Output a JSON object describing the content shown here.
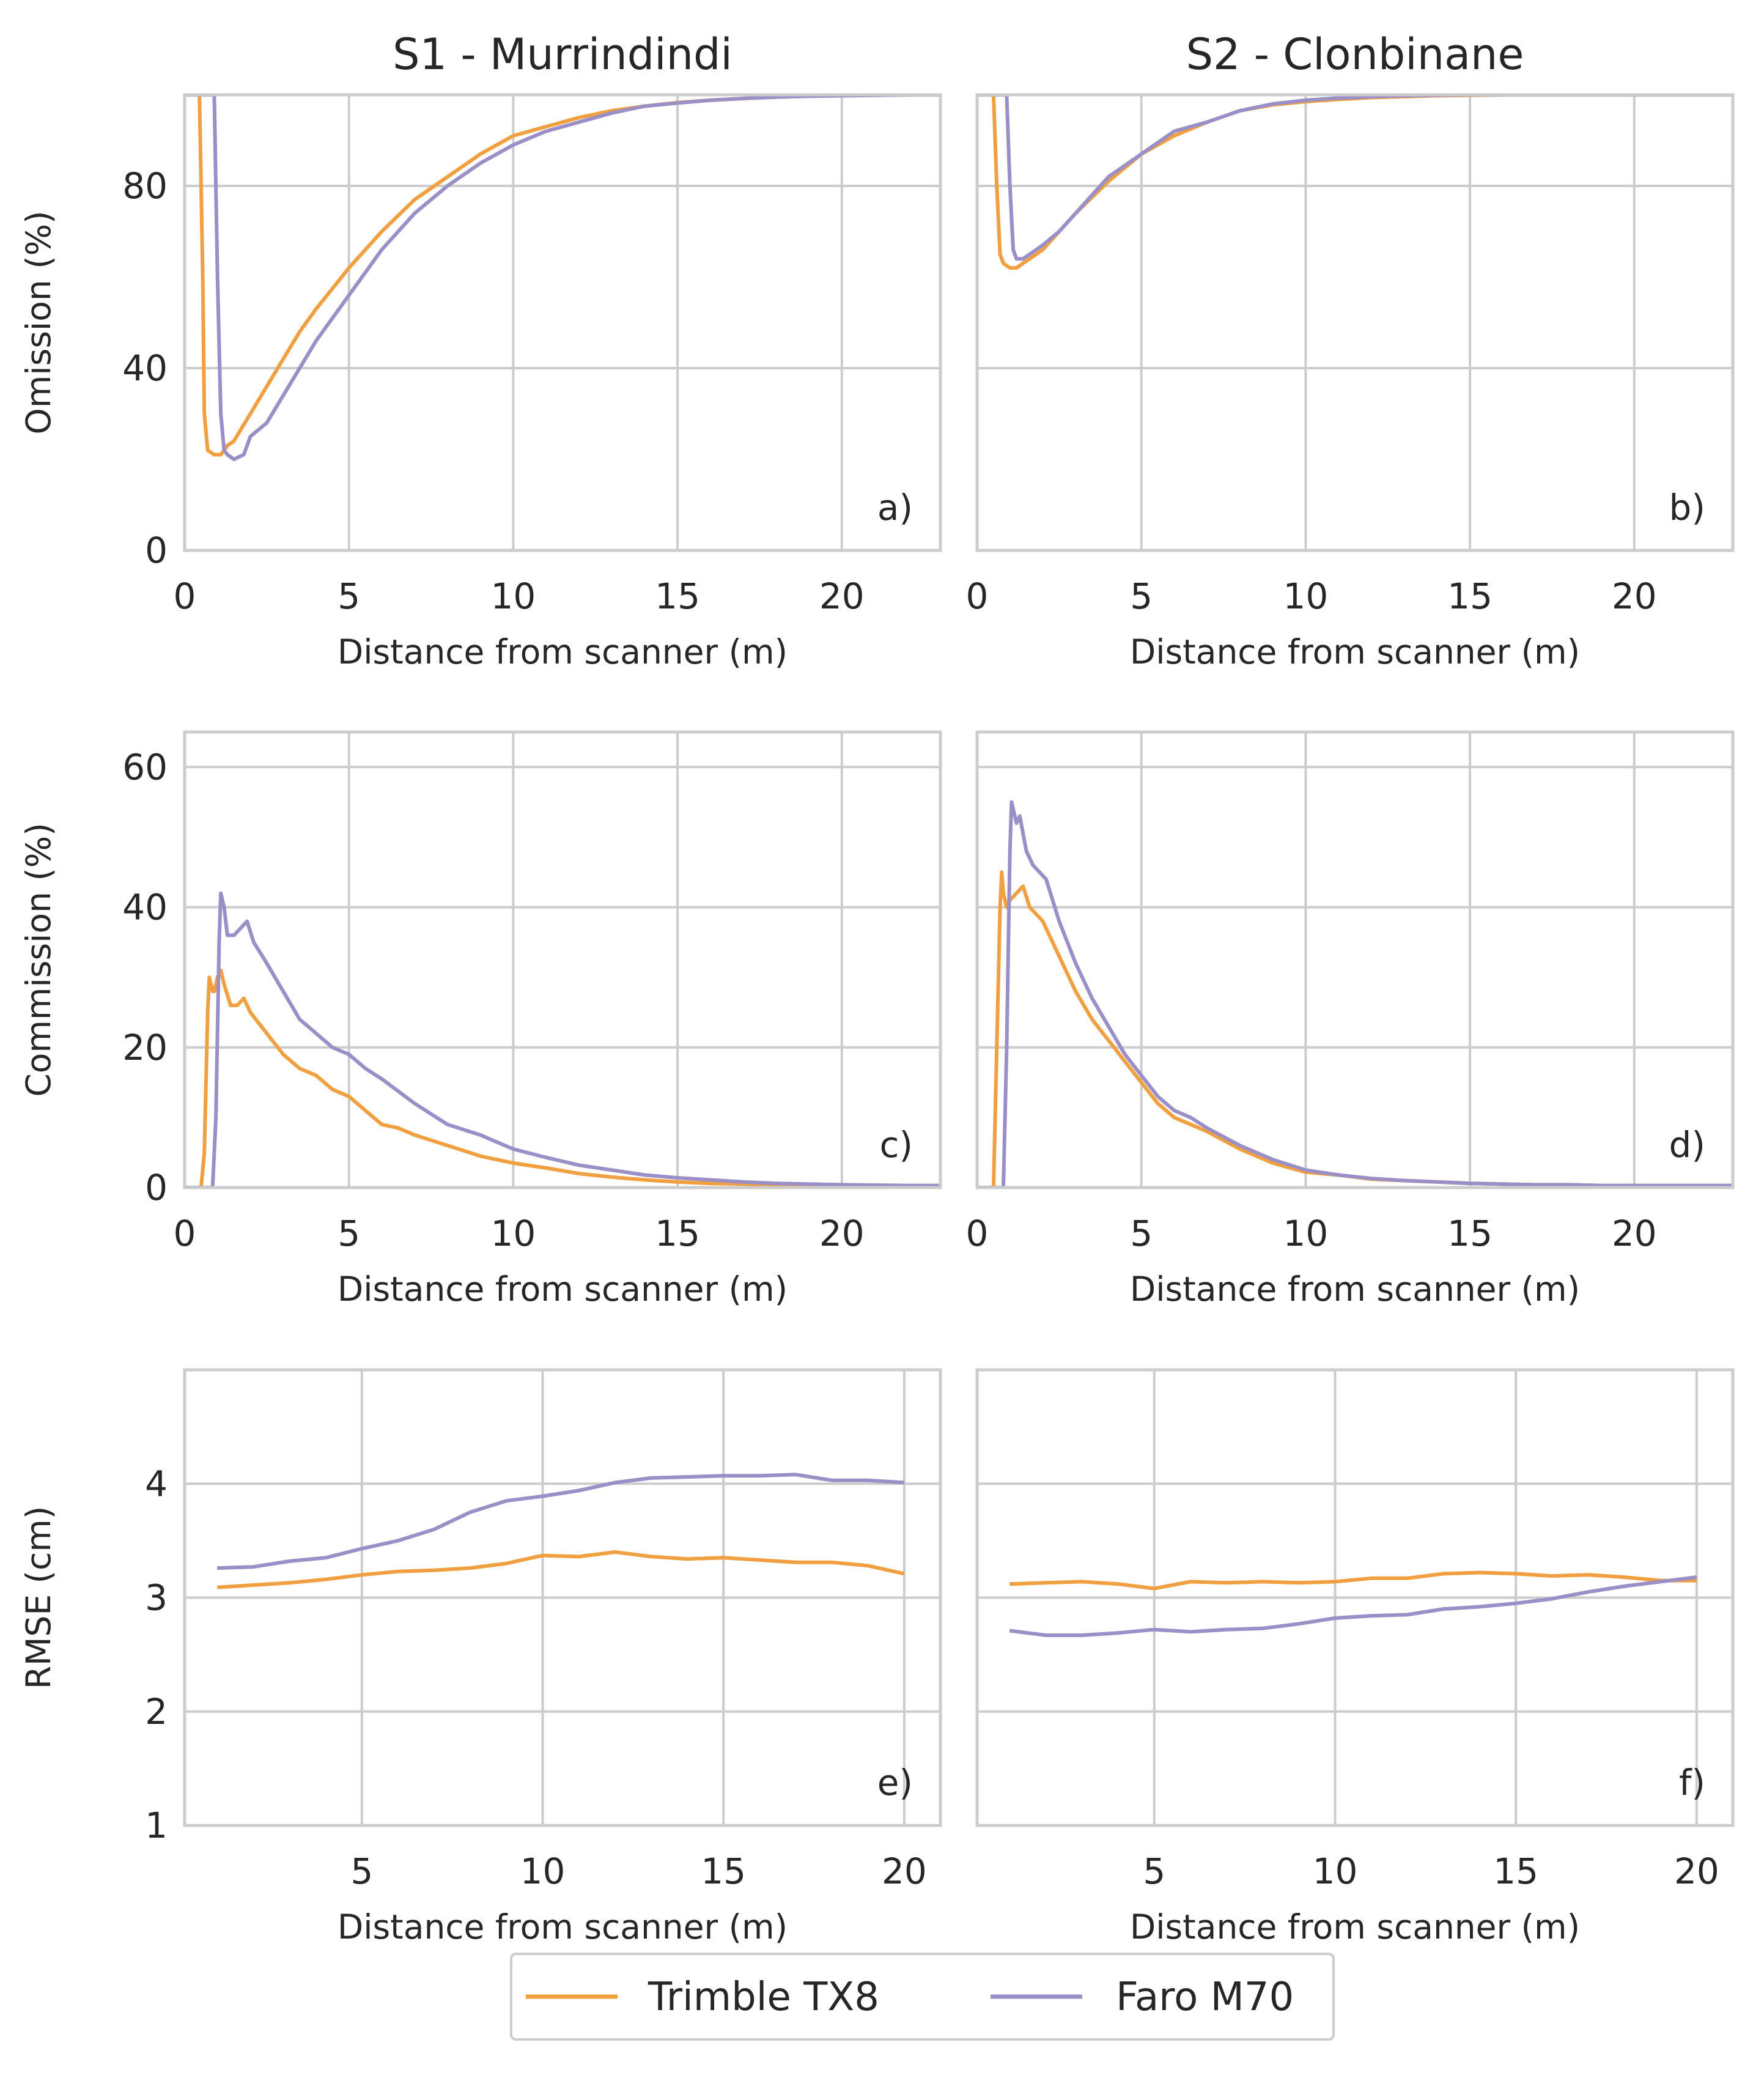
{
  "colors": {
    "trimble": "#f0a040",
    "faro": "#9b8fc8",
    "grid": "#cccccc",
    "frame": "#cccccc"
  },
  "legend": {
    "items": [
      {
        "label": "Trimble TX8",
        "color": "#f0a040"
      },
      {
        "label": "Faro M70",
        "color": "#9b8fc8"
      }
    ]
  },
  "chart_data": [
    {
      "id": "a",
      "type": "line",
      "panel_label": "a)",
      "title": "S1 - Murrindindi",
      "xlabel": "Distance from scanner (m)",
      "ylabel": "Omission (%)",
      "xlim": [
        0,
        23
      ],
      "ylim": [
        0,
        100
      ],
      "xticks": [
        0,
        5,
        10,
        15,
        20
      ],
      "yticks": [
        0,
        40,
        80
      ],
      "grid": true,
      "series": [
        {
          "name": "Trimble TX8",
          "x": [
            0,
            0.45,
            0.55,
            0.6,
            0.7,
            0.9,
            1.1,
            1.3,
            1.5,
            2,
            2.5,
            3,
            3.5,
            4,
            5,
            6,
            7,
            8,
            9,
            10,
            11,
            12,
            13,
            14,
            15,
            16,
            17,
            18,
            19,
            20,
            21,
            22,
            23
          ],
          "y": [
            100,
            100,
            60,
            30,
            22,
            21,
            21,
            23,
            24,
            30,
            36,
            42,
            48,
            53,
            62,
            70,
            77,
            82,
            87,
            91,
            93,
            95,
            96.5,
            97.5,
            98.3,
            98.8,
            99.2,
            99.5,
            99.7,
            99.8,
            99.9,
            100,
            100
          ]
        },
        {
          "name": "Faro M70",
          "x": [
            0,
            0.9,
            1.0,
            1.1,
            1.2,
            1.3,
            1.5,
            1.8,
            2,
            2.5,
            3,
            3.5,
            4,
            5,
            6,
            7,
            8,
            9,
            10,
            11,
            12,
            13,
            14,
            15,
            16,
            17,
            18,
            19,
            20,
            21,
            22,
            23
          ],
          "y": [
            100,
            100,
            60,
            30,
            22,
            21,
            20,
            21,
            25,
            28,
            34,
            40,
            46,
            56,
            66,
            74,
            80,
            85,
            89,
            92,
            94,
            96,
            97.5,
            98.2,
            98.8,
            99.2,
            99.5,
            99.7,
            99.8,
            99.9,
            100,
            100
          ]
        }
      ]
    },
    {
      "id": "b",
      "type": "line",
      "panel_label": "b)",
      "title": "S2 - Clonbinane",
      "xlabel": "Distance from scanner (m)",
      "ylabel": "",
      "xlim": [
        0,
        23
      ],
      "ylim": [
        0,
        100
      ],
      "xticks": [
        0,
        5,
        10,
        15,
        20
      ],
      "yticks": [
        0,
        40,
        80
      ],
      "grid": true,
      "series": [
        {
          "name": "Trimble TX8",
          "x": [
            0,
            0.5,
            0.6,
            0.7,
            0.8,
            1.0,
            1.2,
            1.4,
            1.6,
            2,
            2.5,
            3,
            4,
            5,
            6,
            7,
            8,
            9,
            10,
            11,
            12,
            13,
            14,
            15,
            16,
            17,
            18,
            19,
            20,
            21,
            22,
            23
          ],
          "y": [
            100,
            100,
            80,
            65,
            63,
            62,
            62,
            63,
            64,
            66,
            70,
            74,
            81,
            87,
            91,
            94,
            96.5,
            97.8,
            98.5,
            99,
            99.4,
            99.6,
            99.8,
            99.9,
            100,
            100,
            100,
            100,
            100,
            100,
            100,
            100
          ]
        },
        {
          "name": "Faro M70",
          "x": [
            0,
            0.9,
            1.0,
            1.1,
            1.2,
            1.4,
            1.6,
            2,
            2.5,
            3,
            4,
            5,
            6,
            7,
            8,
            9,
            10,
            11,
            12,
            13,
            14,
            15,
            16,
            17,
            18,
            19,
            20,
            21,
            22,
            23
          ],
          "y": [
            100,
            100,
            80,
            66,
            64,
            64,
            65,
            67,
            70,
            74,
            82,
            87,
            92,
            94,
            96.5,
            98,
            98.8,
            99.3,
            99.6,
            99.8,
            99.9,
            100,
            100,
            100,
            100,
            100,
            100,
            100,
            100,
            100
          ]
        }
      ]
    },
    {
      "id": "c",
      "type": "line",
      "panel_label": "c)",
      "title": "",
      "xlabel": "Distance from scanner (m)",
      "ylabel": "Commission (%)",
      "xlim": [
        0,
        23
      ],
      "ylim": [
        0,
        65
      ],
      "xticks": [
        0,
        5,
        10,
        15,
        20
      ],
      "yticks": [
        0,
        20,
        40,
        60
      ],
      "grid": true,
      "series": [
        {
          "name": "Trimble TX8",
          "x": [
            0,
            0.5,
            0.6,
            0.7,
            0.75,
            0.85,
            0.9,
            1.0,
            1.1,
            1.2,
            1.4,
            1.6,
            1.8,
            2,
            2.5,
            3,
            3.5,
            4,
            4.5,
            5,
            5.5,
            6,
            6.5,
            7,
            8,
            9,
            10,
            11,
            12,
            13,
            14,
            15,
            16,
            17,
            18,
            19,
            20,
            21,
            22,
            23
          ],
          "y": [
            0,
            0,
            5,
            25,
            30,
            28,
            28,
            30,
            31,
            29,
            26,
            26,
            27,
            25,
            22,
            19,
            17,
            16,
            14,
            13,
            11,
            9,
            8.5,
            7.5,
            6,
            4.5,
            3.5,
            2.8,
            2.0,
            1.5,
            1.1,
            0.8,
            0.6,
            0.5,
            0.4,
            0.35,
            0.3,
            0.3,
            0.3,
            0.3
          ]
        },
        {
          "name": "Faro M70",
          "x": [
            0,
            0.85,
            0.95,
            1.05,
            1.1,
            1.2,
            1.3,
            1.5,
            1.7,
            1.9,
            2.1,
            2.5,
            3,
            3.5,
            4,
            4.5,
            5,
            5.5,
            6,
            7,
            8,
            9,
            10,
            11,
            12,
            13,
            14,
            15,
            16,
            17,
            18,
            19,
            20,
            21,
            22,
            23
          ],
          "y": [
            0,
            0,
            10,
            35,
            42,
            40,
            36,
            36,
            37,
            38,
            35,
            32,
            28,
            24,
            22,
            20,
            19,
            17,
            15.5,
            12,
            9,
            7.5,
            5.5,
            4.3,
            3.2,
            2.5,
            1.8,
            1.4,
            1.1,
            0.8,
            0.6,
            0.5,
            0.4,
            0.35,
            0.3,
            0.3
          ]
        }
      ]
    },
    {
      "id": "d",
      "type": "line",
      "panel_label": "d)",
      "title": "",
      "xlabel": "Distance from scanner (m)",
      "ylabel": "",
      "xlim": [
        0,
        23
      ],
      "ylim": [
        0,
        65
      ],
      "xticks": [
        0,
        5,
        10,
        15,
        20
      ],
      "yticks": [
        0,
        20,
        40,
        60
      ],
      "grid": true,
      "series": [
        {
          "name": "Trimble TX8",
          "x": [
            0,
            0.5,
            0.6,
            0.7,
            0.75,
            0.8,
            0.9,
            1.0,
            1.2,
            1.4,
            1.6,
            2,
            2.5,
            3,
            3.5,
            4,
            4.5,
            5,
            5.5,
            6,
            6.5,
            7,
            8,
            9,
            10,
            11,
            12,
            13,
            14,
            15,
            16,
            17,
            18,
            19,
            20,
            21,
            22,
            23
          ],
          "y": [
            0,
            0,
            20,
            40,
            45,
            42,
            40,
            41,
            42,
            43,
            40,
            38,
            33,
            28,
            24,
            21,
            18,
            15,
            12,
            10,
            9,
            8,
            5.5,
            3.5,
            2.2,
            1.8,
            1.2,
            1.0,
            0.8,
            0.6,
            0.5,
            0.4,
            0.4,
            0.3,
            0.3,
            0.3,
            0.3,
            0.3
          ]
        },
        {
          "name": "Faro M70",
          "x": [
            0,
            0.8,
            0.9,
            1.0,
            1.05,
            1.1,
            1.2,
            1.3,
            1.5,
            1.7,
            1.9,
            2.1,
            2.5,
            3,
            3.5,
            4,
            4.5,
            5,
            5.5,
            6,
            6.5,
            7,
            8,
            9,
            10,
            11,
            12,
            13,
            14,
            15,
            16,
            17,
            18,
            19,
            20,
            21,
            22,
            23
          ],
          "y": [
            0,
            0,
            20,
            48,
            55,
            54,
            52,
            53,
            48,
            46,
            45,
            44,
            38,
            32,
            27,
            23,
            19,
            16,
            13,
            11,
            10,
            8.5,
            6,
            4,
            2.5,
            1.8,
            1.3,
            1.0,
            0.8,
            0.6,
            0.5,
            0.4,
            0.4,
            0.3,
            0.3,
            0.3,
            0.3,
            0.3
          ]
        }
      ]
    },
    {
      "id": "e",
      "type": "line",
      "panel_label": "e)",
      "title": "",
      "xlabel": "Distance from scanner (m)",
      "ylabel": "RMSE (cm)",
      "xlim": [
        0.1,
        21
      ],
      "ylim": [
        1,
        5
      ],
      "xticks": [
        5,
        10,
        15,
        20
      ],
      "yticks": [
        1,
        2,
        3,
        4
      ],
      "grid": true,
      "series": [
        {
          "name": "Trimble TX8",
          "x": [
            1,
            2,
            3,
            4,
            5,
            6,
            7,
            8,
            9,
            10,
            11,
            12,
            13,
            14,
            15,
            16,
            17,
            18,
            19,
            20
          ],
          "y": [
            3.09,
            3.11,
            3.13,
            3.16,
            3.2,
            3.23,
            3.24,
            3.26,
            3.3,
            3.37,
            3.36,
            3.4,
            3.36,
            3.34,
            3.35,
            3.33,
            3.31,
            3.31,
            3.28,
            3.21
          ]
        },
        {
          "name": "Faro M70",
          "x": [
            1,
            2,
            3,
            4,
            5,
            6,
            7,
            8,
            9,
            10,
            11,
            12,
            13,
            14,
            15,
            16,
            17,
            18,
            19,
            20
          ],
          "y": [
            3.26,
            3.27,
            3.32,
            3.35,
            3.43,
            3.5,
            3.6,
            3.75,
            3.85,
            3.89,
            3.94,
            4.01,
            4.05,
            4.06,
            4.07,
            4.07,
            4.08,
            4.03,
            4.03,
            4.01
          ]
        }
      ]
    },
    {
      "id": "f",
      "type": "line",
      "panel_label": "f)",
      "title": "",
      "xlabel": "Distance from scanner (m)",
      "ylabel": "",
      "xlim": [
        0.1,
        21
      ],
      "ylim": [
        1,
        5
      ],
      "xticks": [
        5,
        10,
        15,
        20
      ],
      "yticks": [
        1,
        2,
        3,
        4
      ],
      "grid": true,
      "series": [
        {
          "name": "Trimble TX8",
          "x": [
            1,
            2,
            3,
            4,
            5,
            6,
            7,
            8,
            9,
            10,
            11,
            12,
            13,
            14,
            15,
            16,
            17,
            18,
            19,
            20
          ],
          "y": [
            3.12,
            3.13,
            3.14,
            3.12,
            3.08,
            3.14,
            3.13,
            3.14,
            3.13,
            3.14,
            3.17,
            3.17,
            3.21,
            3.22,
            3.21,
            3.19,
            3.2,
            3.18,
            3.15,
            3.15
          ]
        },
        {
          "name": "Faro M70",
          "x": [
            1,
            2,
            3,
            4,
            5,
            6,
            7,
            8,
            9,
            10,
            11,
            12,
            13,
            14,
            15,
            16,
            17,
            18,
            19,
            20
          ],
          "y": [
            2.71,
            2.67,
            2.67,
            2.69,
            2.72,
            2.7,
            2.72,
            2.73,
            2.77,
            2.82,
            2.84,
            2.85,
            2.9,
            2.92,
            2.95,
            2.99,
            3.05,
            3.1,
            3.14,
            3.18
          ]
        }
      ]
    }
  ]
}
